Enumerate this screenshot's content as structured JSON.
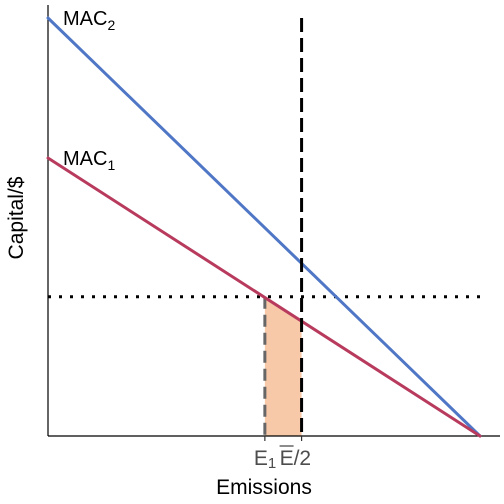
{
  "chart_data": {
    "type": "line",
    "xlabel": "Emissions",
    "ylabel": "Capital/$",
    "xlim": [
      0,
      1
    ],
    "ylim": [
      0,
      1
    ],
    "grid": false,
    "series": [
      {
        "name": "MAC",
        "subscript": "2",
        "color": "#5077c6",
        "points": [
          [
            0,
            1.0
          ],
          [
            1,
            0
          ]
        ]
      },
      {
        "name": "MAC",
        "subscript": "1",
        "color": "#b83b5e",
        "points": [
          [
            0,
            0.665
          ],
          [
            1,
            0
          ]
        ]
      }
    ],
    "reference_lines": {
      "permit_price": {
        "y": 0.333,
        "style": "dotted",
        "color": "#000000"
      },
      "cap": {
        "x": 0.587,
        "style": "dashed",
        "color": "#000000"
      },
      "e1": {
        "x": 0.502,
        "style": "dashed",
        "color": "#666666"
      }
    },
    "shaded_region": {
      "color": "#f7c9a9",
      "x_from": 0.502,
      "x_to": 0.587,
      "upper_series": 1
    },
    "ticks": {
      "e1": {
        "x": 0.502,
        "label": "E",
        "sub": "1"
      },
      "cap": {
        "x": 0.587,
        "label": "E",
        "suffix": "/2"
      }
    }
  }
}
